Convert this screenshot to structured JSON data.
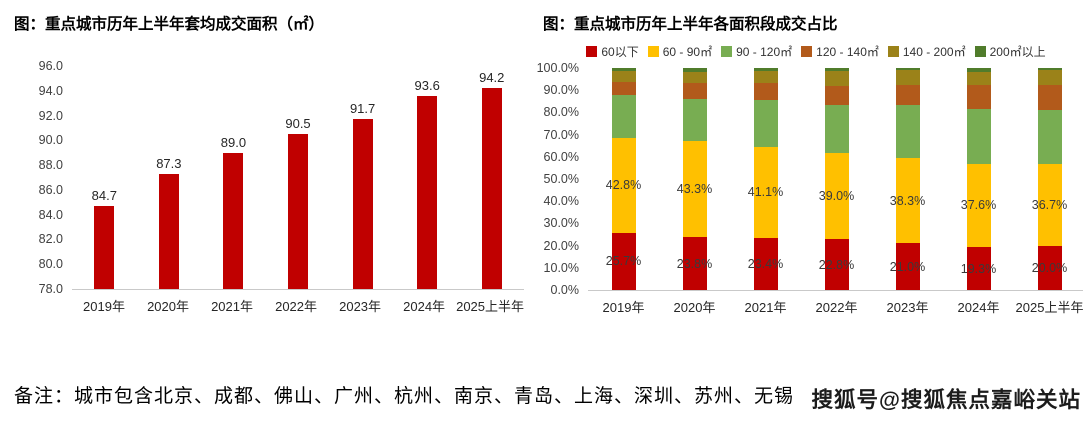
{
  "watermark": {
    "text": "搜狐号@搜狐焦点嘉峪关站"
  },
  "note": {
    "text": "备注：城市包含北京、成都、佛山、广州、杭州、南京、青岛、上海、深圳、苏州、无锡"
  },
  "chart_data": [
    {
      "type": "bar",
      "title": "图：重点城市历年上半年套均成交面积（㎡）",
      "categories": [
        "2019年",
        "2020年",
        "2021年",
        "2022年",
        "2023年",
        "2024年",
        "2025上半年"
      ],
      "values": [
        84.7,
        87.3,
        89.0,
        90.5,
        91.7,
        93.6,
        94.2
      ],
      "data_labels": [
        "84.7",
        "87.3",
        "89.0",
        "90.5",
        "91.7",
        "93.6",
        "94.2"
      ],
      "ylim": [
        78.0,
        96.0
      ],
      "ytick_labels": [
        "96.0",
        "94.0",
        "92.0",
        "90.0",
        "88.0",
        "86.0",
        "84.0",
        "82.0",
        "80.0",
        "78.0"
      ],
      "bar_color": "#c00000",
      "grid": false,
      "legend_position": "none"
    },
    {
      "type": "stacked-bar-100",
      "title": "图：重点城市历年上半年各面积段成交占比",
      "categories": [
        "2019年",
        "2020年",
        "2021年",
        "2022年",
        "2023年",
        "2024年",
        "2025上半年"
      ],
      "series": [
        {
          "name": "60以下",
          "color": "#c00000",
          "values": [
            25.7,
            23.8,
            23.4,
            22.8,
            21.0,
            19.3,
            20.0
          ],
          "labels": [
            "25.7%",
            "23.8%",
            "23.4%",
            "22.8%",
            "21.0%",
            "19.3%",
            "20.0%"
          ]
        },
        {
          "name": "60 - 90㎡",
          "color": "#ffc000",
          "values": [
            42.8,
            43.3,
            41.1,
            39.0,
            38.3,
            37.6,
            36.7
          ],
          "labels": [
            "42.8%",
            "43.3%",
            "41.1%",
            "39.0%",
            "38.3%",
            "37.6%",
            "36.7%"
          ]
        },
        {
          "name": "90 - 120㎡",
          "color": "#78ad52",
          "values": [
            19.4,
            18.9,
            20.9,
            21.7,
            24.2,
            24.8,
            24.2
          ]
        },
        {
          "name": "120 - 140㎡",
          "color": "#b25a1b",
          "values": [
            5.6,
            7.2,
            8.0,
            8.4,
            9.0,
            10.5,
            11.6
          ]
        },
        {
          "name": "140 - 200㎡",
          "color": "#9b8219",
          "values": [
            5.0,
            5.1,
            5.1,
            6.6,
            6.5,
            6.0,
            6.5
          ]
        },
        {
          "name": "200㎡以上",
          "color": "#507c2b",
          "values": [
            1.5,
            1.7,
            1.5,
            1.5,
            1.0,
            1.8,
            1.0
          ]
        }
      ],
      "ylim": [
        0,
        100
      ],
      "ytick_labels": [
        "100.0%",
        "90.0%",
        "80.0%",
        "70.0%",
        "60.0%",
        "50.0%",
        "40.0%",
        "30.0%",
        "20.0%",
        "10.0%",
        "0.0%"
      ],
      "grid": false,
      "legend_position": "top"
    }
  ]
}
